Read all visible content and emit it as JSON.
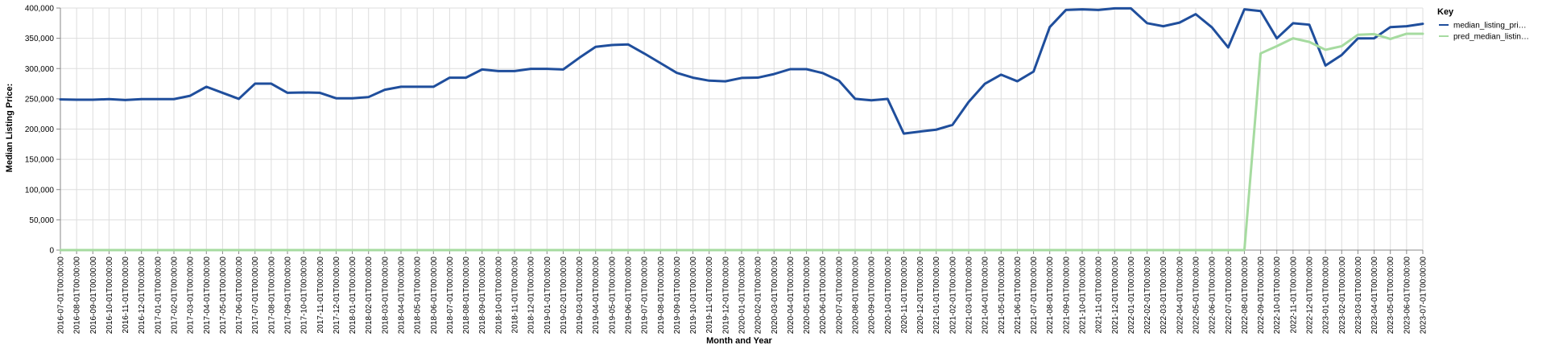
{
  "chart_data": {
    "type": "line",
    "xlabel": "Month and Year",
    "ylabel": "Median Listing Price:",
    "ylim": [
      0,
      400000
    ],
    "yticks": [
      0,
      50000,
      100000,
      150000,
      200000,
      250000,
      300000,
      350000,
      400000
    ],
    "ytick_labels": [
      "0",
      "50,000",
      "100,000",
      "150,000",
      "200,000",
      "250,000",
      "300,000",
      "350,000",
      "400,000"
    ],
    "grid": true,
    "legend": {
      "title": "Key",
      "placement": "right",
      "entries": [
        "median_listing_pri…",
        "pred_median_listin…"
      ]
    },
    "x": [
      "2016-07-01T00:00:00",
      "2016-08-01T00:00:00",
      "2016-09-01T00:00:00",
      "2016-10-01T00:00:00",
      "2016-11-01T00:00:00",
      "2016-12-01T00:00:00",
      "2017-01-01T00:00:00",
      "2017-02-01T00:00:00",
      "2017-03-01T00:00:00",
      "2017-04-01T00:00:00",
      "2017-05-01T00:00:00",
      "2017-06-01T00:00:00",
      "2017-07-01T00:00:00",
      "2017-08-01T00:00:00",
      "2017-09-01T00:00:00",
      "2017-10-01T00:00:00",
      "2017-11-01T00:00:00",
      "2017-12-01T00:00:00",
      "2018-01-01T00:00:00",
      "2018-02-01T00:00:00",
      "2018-03-01T00:00:00",
      "2018-04-01T00:00:00",
      "2018-05-01T00:00:00",
      "2018-06-01T00:00:00",
      "2018-07-01T00:00:00",
      "2018-08-01T00:00:00",
      "2018-09-01T00:00:00",
      "2018-10-01T00:00:00",
      "2018-11-01T00:00:00",
      "2018-12-01T00:00:00",
      "2019-01-01T00:00:00",
      "2019-02-01T00:00:00",
      "2019-03-01T00:00:00",
      "2019-04-01T00:00:00",
      "2019-05-01T00:00:00",
      "2019-06-01T00:00:00",
      "2019-07-01T00:00:00",
      "2019-08-01T00:00:00",
      "2019-09-01T00:00:00",
      "2019-10-01T00:00:00",
      "2019-11-01T00:00:00",
      "2019-12-01T00:00:00",
      "2020-01-01T00:00:00",
      "2020-02-01T00:00:00",
      "2020-03-01T00:00:00",
      "2020-04-01T00:00:00",
      "2020-05-01T00:00:00",
      "2020-06-01T00:00:00",
      "2020-07-01T00:00:00",
      "2020-08-01T00:00:00",
      "2020-09-01T00:00:00",
      "2020-10-01T00:00:00",
      "2020-11-01T00:00:00",
      "2020-12-01T00:00:00",
      "2021-01-01T00:00:00",
      "2021-02-01T00:00:00",
      "2021-03-01T00:00:00",
      "2021-04-01T00:00:00",
      "2021-05-01T00:00:00",
      "2021-06-01T00:00:00",
      "2021-07-01T00:00:00",
      "2021-08-01T00:00:00",
      "2021-09-01T00:00:00",
      "2021-10-01T00:00:00",
      "2021-11-01T00:00:00",
      "2021-12-01T00:00:00",
      "2022-01-01T00:00:00",
      "2022-02-01T00:00:00",
      "2022-03-01T00:00:00",
      "2022-04-01T00:00:00",
      "2022-05-01T00:00:00",
      "2022-06-01T00:00:00",
      "2022-07-01T00:00:00",
      "2022-08-01T00:00:00",
      "2022-09-01T00:00:00",
      "2022-10-01T00:00:00",
      "2022-11-01T00:00:00",
      "2022-12-01T00:00:00",
      "2023-01-01T00:00:00",
      "2023-02-01T00:00:00",
      "2023-03-01T00:00:00",
      "2023-04-01T00:00:00",
      "2023-05-01T00:00:00",
      "2023-06-01T00:00:00",
      "2023-07-01T00:00:00"
    ],
    "series": [
      {
        "name": "median_listing_pri…",
        "color": "#1f4e9c",
        "values": [
          249000,
          248500,
          248500,
          249500,
          248000,
          249500,
          249500,
          249500,
          255000,
          269900,
          259900,
          249900,
          275000,
          275000,
          259900,
          260500,
          259900,
          250900,
          250900,
          252900,
          264900,
          269900,
          269900,
          269900,
          284900,
          284900,
          298500,
          295900,
          295900,
          299500,
          299500,
          298500,
          317900,
          335900,
          338900,
          339900,
          324900,
          309000,
          292900,
          284900,
          280000,
          278900,
          284500,
          285000,
          290900,
          299000,
          299000,
          292500,
          280000,
          250000,
          247500,
          249900,
          192500,
          195900,
          199000,
          206900,
          244900,
          274900,
          289900,
          279000,
          295000,
          368500,
          396900,
          397900,
          396900,
          399500,
          399500,
          375000,
          369900,
          375900,
          389900,
          368000,
          334900,
          397900,
          395000,
          349900,
          374900,
          372500,
          305000,
          322500,
          349900,
          350000,
          368500,
          369900,
          373900
        ]
      },
      {
        "name": "pred_median_listin…",
        "color": "#a6dba0",
        "values": [
          0,
          0,
          0,
          0,
          0,
          0,
          0,
          0,
          0,
          0,
          0,
          0,
          0,
          0,
          0,
          0,
          0,
          0,
          0,
          0,
          0,
          0,
          0,
          0,
          0,
          0,
          0,
          0,
          0,
          0,
          0,
          0,
          0,
          0,
          0,
          0,
          0,
          0,
          0,
          0,
          0,
          0,
          0,
          0,
          0,
          0,
          0,
          0,
          0,
          0,
          0,
          0,
          0,
          0,
          0,
          0,
          0,
          0,
          0,
          0,
          0,
          0,
          0,
          0,
          0,
          0,
          0,
          0,
          0,
          0,
          0,
          0,
          0,
          0,
          325000,
          337000,
          350000,
          344000,
          331000,
          337000,
          355900,
          356900,
          348900,
          357500,
          357500
        ]
      }
    ]
  }
}
